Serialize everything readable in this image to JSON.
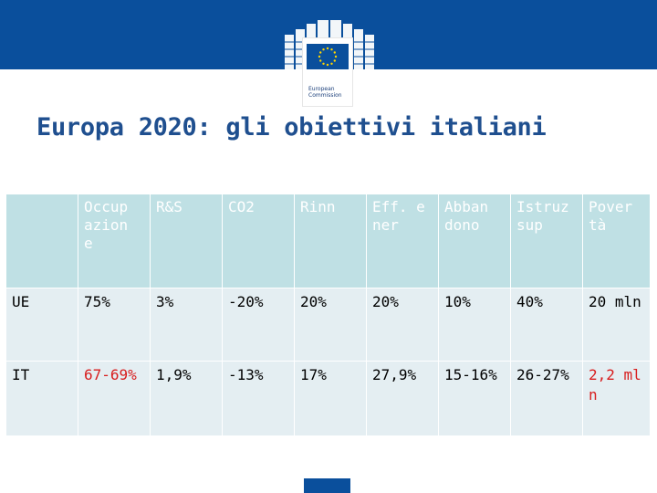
{
  "header": {
    "logo_name": "European Commission",
    "logo_lines": [
      "European",
      "Commission"
    ]
  },
  "title": "Europa 2020: gli obiettivi italiani",
  "table": {
    "columns": [
      "",
      "Occup azion e",
      "R&S",
      "CO2",
      "Rinn",
      "Eff. ener",
      "Abban dono",
      "Istruz sup",
      "Pover tà"
    ],
    "rows": [
      {
        "label": "UE",
        "cells": [
          "75%",
          "3%",
          "-20%",
          "20%",
          "20%",
          "10%",
          "40%",
          "20 mln"
        ]
      },
      {
        "label": "IT",
        "cells": [
          "67-69%",
          "1,9%",
          "-13%",
          "17%",
          "27,9%",
          "15-16%",
          "26-27%",
          "2,2 mln"
        ]
      }
    ]
  },
  "colors": {
    "brand_blue": "#0a4f9c",
    "title_blue": "#1f4f8f",
    "header_cell": "#bfe0e4",
    "body_cell": "#e4eef2",
    "highlight_red": "#d81e1e"
  }
}
